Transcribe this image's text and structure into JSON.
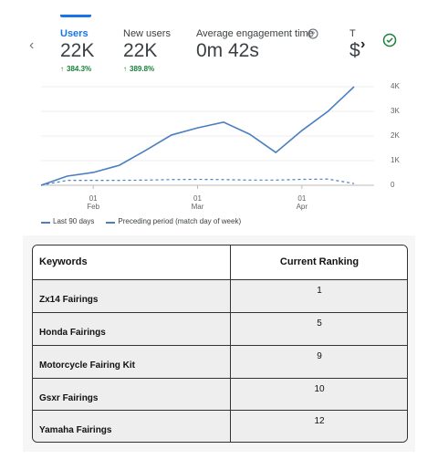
{
  "metrics": [
    {
      "label": "Users",
      "value": "22K",
      "change": "384.3%"
    },
    {
      "label": "New users",
      "value": "22K",
      "change": "389.8%"
    },
    {
      "label": "Average engagement time",
      "value": "0m 42s"
    },
    {
      "label": "T",
      "value": "$"
    }
  ],
  "chart_data": {
    "type": "line",
    "categories": [
      null,
      null,
      "01\nFeb",
      null,
      null,
      null,
      "01\nMar",
      null,
      null,
      null,
      "01\nApr",
      null,
      null
    ],
    "series": [
      {
        "name": "Last 90 days",
        "color": "#4a7fc1",
        "dash": false,
        "values": [
          0,
          370,
          520,
          810,
          1410,
          2040,
          2330,
          2560,
          2070,
          1330,
          2220,
          3000,
          4000
        ]
      },
      {
        "name": "Preceding period (match day of week)",
        "color": "#4a7fc1",
        "dash": true,
        "values": [
          0,
          200,
          200,
          200,
          210,
          230,
          240,
          230,
          210,
          210,
          240,
          250,
          70
        ]
      }
    ],
    "ylim": [
      0,
      4000
    ],
    "yticks": [
      0,
      {
        "value": 1000,
        "label": "1K"
      },
      {
        "value": 2000,
        "label": "2K"
      },
      {
        "value": 3000,
        "label": "3K"
      },
      {
        "value": 4000,
        "label": "4K"
      }
    ],
    "grid": true
  },
  "table": {
    "header": [
      "Keywords",
      "Current Ranking"
    ],
    "rows": [
      [
        "Zx14 Fairings",
        "1"
      ],
      [
        "Honda Fairings",
        "5"
      ],
      [
        "Motorcycle Fairing Kit",
        "9"
      ],
      [
        "Gsxr Fairings",
        "10"
      ],
      [
        "Yamaha Fairings",
        "12"
      ]
    ]
  }
}
